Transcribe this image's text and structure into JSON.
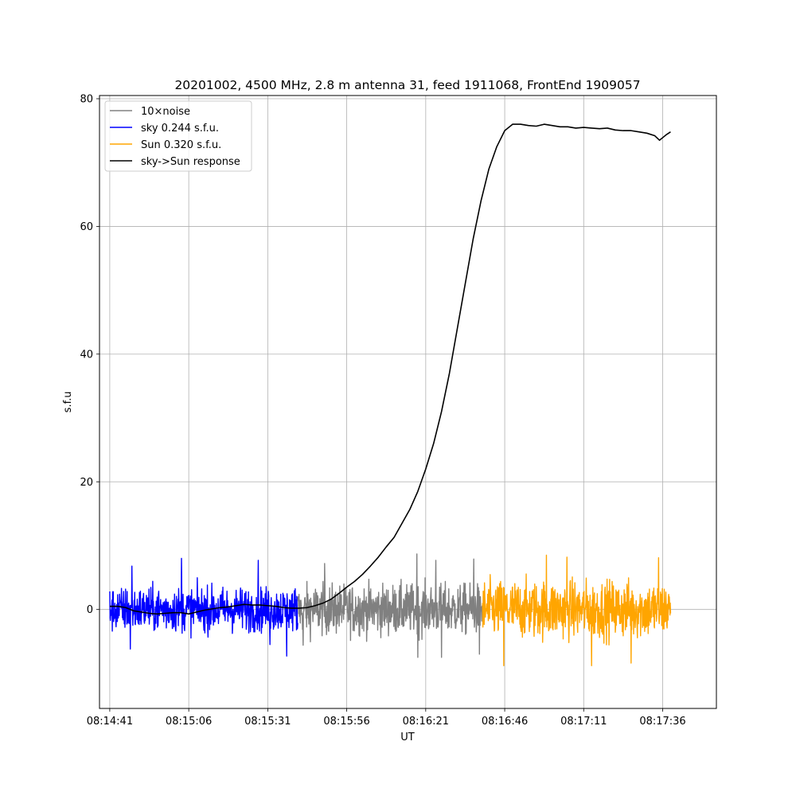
{
  "chart_data": {
    "type": "line",
    "title": "20201002, 4500 MHz, 2.8 m antenna 31, feed 1911068, FrontEnd 1909057",
    "xlabel": "UT",
    "ylabel": "s.f.u",
    "xlim": [
      -1.3,
      76.8
    ],
    "ylim": [
      -15.5,
      80.5
    ],
    "x_ticks": [
      {
        "value": 0,
        "label": "08:14:41"
      },
      {
        "value": 10,
        "label": "08:15:06"
      },
      {
        "value": 20,
        "label": "08:15:31"
      },
      {
        "value": 30,
        "label": "08:15:56"
      },
      {
        "value": 40,
        "label": "08:16:21"
      },
      {
        "value": 50,
        "label": "08:16:46"
      },
      {
        "value": 60,
        "label": "08:17:11"
      },
      {
        "value": 70,
        "label": "08:17:36"
      }
    ],
    "y_ticks": [
      {
        "value": 0,
        "label": "0"
      },
      {
        "value": 20,
        "label": "20"
      },
      {
        "value": 40,
        "label": "40"
      },
      {
        "value": 60,
        "label": "60"
      },
      {
        "value": 80,
        "label": "80"
      }
    ],
    "grid": true,
    "legend_position": "top-left",
    "series": [
      {
        "name": "10×noise",
        "color": "#808080",
        "kind": "noise",
        "x_range": [
          23.8,
          47.2
        ],
        "amplitude": 2.6,
        "extremes": [
          [
            24.5,
            -5.6
          ],
          [
            27.2,
            7.2
          ],
          [
            38.9,
            8.7
          ],
          [
            39.0,
            -7.5
          ],
          [
            42.0,
            -7.5
          ],
          [
            41.3,
            7.7
          ],
          [
            46.1,
            7.9
          ],
          [
            46.8,
            -7.0
          ]
        ]
      },
      {
        "name": "sky 0.244 s.f.u.",
        "color": "#0000ff",
        "kind": "noise",
        "x_range": [
          0,
          23.8
        ],
        "amplitude": 2.3,
        "extremes": [
          [
            2.8,
            6.8
          ],
          [
            2.6,
            -6.2
          ],
          [
            9.1,
            8.0
          ],
          [
            18.8,
            7.7
          ],
          [
            22.4,
            -7.3
          ],
          [
            20.3,
            -5.5
          ]
        ]
      },
      {
        "name": "Sun 0.320 s.f.u.",
        "color": "#ffa500",
        "kind": "noise",
        "x_range": [
          47.2,
          71.0
        ],
        "amplitude": 3.0,
        "extremes": [
          [
            55.3,
            -11.3
          ],
          [
            55.3,
            8.5
          ],
          [
            49.9,
            -8.8
          ],
          [
            57.9,
            8.2
          ],
          [
            61.0,
            -8.8
          ],
          [
            69.5,
            8.1
          ],
          [
            66.0,
            -8.4
          ]
        ]
      },
      {
        "name": "sky->Sun response",
        "color": "#000000",
        "kind": "line",
        "points": [
          [
            0,
            0.5
          ],
          [
            1,
            0.5
          ],
          [
            2,
            0.3
          ],
          [
            3,
            -0.2
          ],
          [
            4,
            -0.4
          ],
          [
            5,
            -0.6
          ],
          [
            6,
            -0.7
          ],
          [
            7,
            -0.6
          ],
          [
            8,
            -0.5
          ],
          [
            9,
            -0.5
          ],
          [
            10,
            -0.7
          ],
          [
            11,
            -0.4
          ],
          [
            12,
            -0.1
          ],
          [
            13,
            0.1
          ],
          [
            14,
            0.3
          ],
          [
            15,
            0.4
          ],
          [
            16,
            0.6
          ],
          [
            17,
            0.8
          ],
          [
            18,
            0.7
          ],
          [
            19,
            0.7
          ],
          [
            20,
            0.6
          ],
          [
            21,
            0.5
          ],
          [
            22,
            0.3
          ],
          [
            23,
            0.2
          ],
          [
            24,
            0.2
          ],
          [
            25,
            0.3
          ],
          [
            26,
            0.6
          ],
          [
            27,
            1.0
          ],
          [
            28,
            1.6
          ],
          [
            29,
            2.5
          ],
          [
            30,
            3.5
          ],
          [
            31,
            4.4
          ],
          [
            32,
            5.5
          ],
          [
            33,
            6.8
          ],
          [
            34,
            8.2
          ],
          [
            35,
            9.8
          ],
          [
            36,
            11.3
          ],
          [
            37,
            13.5
          ],
          [
            38,
            15.7
          ],
          [
            39,
            18.5
          ],
          [
            40,
            22.0
          ],
          [
            41,
            26.0
          ],
          [
            42,
            31.0
          ],
          [
            43,
            37.0
          ],
          [
            44,
            44.0
          ],
          [
            45,
            51.0
          ],
          [
            46,
            58.0
          ],
          [
            47,
            64.0
          ],
          [
            48,
            69.0
          ],
          [
            49,
            72.5
          ],
          [
            50,
            75.0
          ],
          [
            51,
            76.0
          ],
          [
            52,
            76.0
          ],
          [
            53,
            75.8
          ],
          [
            54,
            75.7
          ],
          [
            55,
            76.0
          ],
          [
            56,
            75.8
          ],
          [
            57,
            75.6
          ],
          [
            58,
            75.6
          ],
          [
            59,
            75.4
          ],
          [
            60,
            75.5
          ],
          [
            61,
            75.4
          ],
          [
            62,
            75.3
          ],
          [
            63,
            75.4
          ],
          [
            64,
            75.1
          ],
          [
            65,
            75.0
          ],
          [
            66,
            75.0
          ],
          [
            67,
            74.8
          ],
          [
            68,
            74.6
          ],
          [
            69,
            74.2
          ],
          [
            69.6,
            73.5
          ],
          [
            70,
            73.9
          ],
          [
            70.5,
            74.4
          ],
          [
            71,
            74.8
          ]
        ]
      }
    ]
  }
}
